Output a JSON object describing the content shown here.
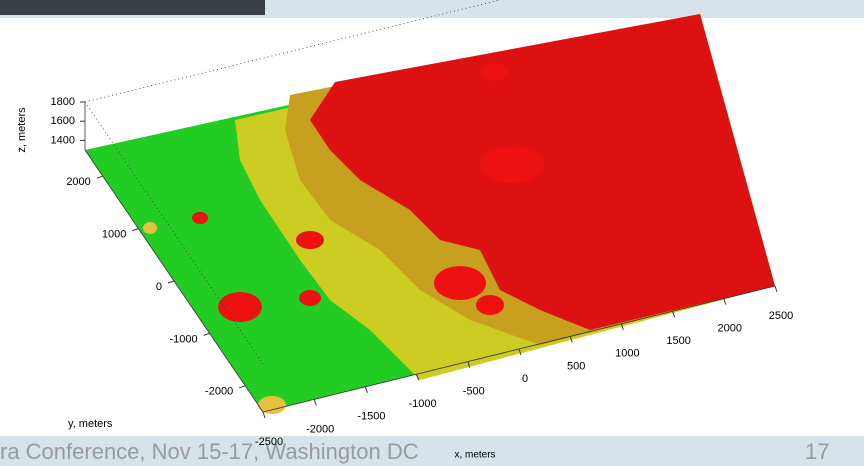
{
  "chart_data": {
    "type": "surface3d",
    "xlabel": "x, meters",
    "ylabel": "y, meters",
    "zlabel": "z, meters",
    "xlim": [
      -2500,
      2500
    ],
    "ylim": [
      -2500,
      2500
    ],
    "zlim": [
      1300,
      1800
    ],
    "xticks": [
      -2500,
      -2000,
      -1500,
      -1000,
      -500,
      0,
      500,
      1000,
      1500,
      2000,
      2500
    ],
    "yticks": [
      -2000,
      -1000,
      0,
      1000,
      2000
    ],
    "zticks": [
      1400,
      1600,
      1800
    ]
  },
  "slide": {
    "footer": "ra Conference, Nov 15-17, Washington DC",
    "page_number": 17
  }
}
